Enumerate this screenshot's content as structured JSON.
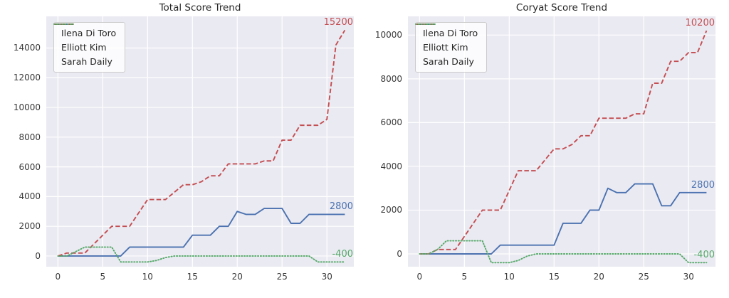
{
  "colors": {
    "figure_bg": "#ffffff",
    "axes_bg": "#eaeaf2",
    "grid": "#ffffff",
    "text": "#262626",
    "tick_text": "#3a3a3a",
    "ilena": "#4c72b0",
    "elliott": "#c44e52",
    "sarah": "#55a868",
    "legend_border": "#cccccc"
  },
  "chart_data": [
    {
      "type": "line",
      "title": "Total Score Trend",
      "grid": true,
      "legend_position": "upper left",
      "x_ticks": [
        0,
        5,
        10,
        15,
        20,
        25,
        30
      ],
      "y_ticks": [
        0,
        2000,
        4000,
        6000,
        8000,
        10000,
        12000,
        14000
      ],
      "xlim": [
        -1.3,
        33.0
      ],
      "ylim": [
        -720,
        16130
      ],
      "x": [
        0,
        1,
        2,
        3,
        4,
        5,
        6,
        7,
        8,
        9,
        10,
        11,
        12,
        13,
        14,
        15,
        16,
        17,
        18,
        19,
        20,
        21,
        22,
        23,
        24,
        25,
        26,
        27,
        28,
        29,
        30,
        31,
        32
      ],
      "series": [
        {
          "name": "Ilena Di Toro",
          "color_key": "ilena",
          "dash": "solid",
          "end_label": "2800",
          "values": [
            0,
            0,
            0,
            0,
            0,
            0,
            0,
            0,
            600,
            600,
            600,
            600,
            600,
            600,
            600,
            1400,
            1400,
            1400,
            2000,
            2000,
            3000,
            2800,
            2800,
            3200,
            3200,
            3200,
            2200,
            2200,
            2800,
            2800,
            2800,
            2800,
            2800
          ]
        },
        {
          "name": "Elliott Kim",
          "color_key": "elliott",
          "dash": "dashed",
          "end_label": "15200",
          "values": [
            0,
            200,
            200,
            200,
            800,
            1400,
            2000,
            2000,
            2000,
            2900,
            3800,
            3800,
            3800,
            4300,
            4800,
            4800,
            5000,
            5400,
            5400,
            6200,
            6200,
            6200,
            6200,
            6400,
            6400,
            7800,
            7800,
            8800,
            8800,
            8800,
            9200,
            14200,
            15200
          ]
        },
        {
          "name": "Sarah Daily",
          "color_key": "sarah",
          "dash": "dotted",
          "end_label": "-400",
          "values": [
            0,
            0,
            300,
            600,
            600,
            600,
            600,
            -400,
            -400,
            -400,
            -400,
            -300,
            -100,
            0,
            0,
            0,
            0,
            0,
            0,
            0,
            0,
            0,
            0,
            0,
            0,
            0,
            0,
            0,
            0,
            -400,
            -400,
            -400,
            -400
          ]
        }
      ]
    },
    {
      "type": "line",
      "title": "Coryat Score Trend",
      "grid": true,
      "legend_position": "upper left",
      "x_ticks": [
        0,
        5,
        10,
        15,
        20,
        25,
        30
      ],
      "y_ticks": [
        0,
        2000,
        4000,
        6000,
        8000,
        10000
      ],
      "xlim": [
        -1.3,
        33.0
      ],
      "ylim": [
        -585,
        10855
      ],
      "x": [
        0,
        1,
        2,
        3,
        4,
        5,
        6,
        7,
        8,
        9,
        10,
        11,
        12,
        13,
        14,
        15,
        16,
        17,
        18,
        19,
        20,
        21,
        22,
        23,
        24,
        25,
        26,
        27,
        28,
        29,
        30,
        31,
        32
      ],
      "series": [
        {
          "name": "Ilena Di Toro",
          "color_key": "ilena",
          "dash": "solid",
          "end_label": "2800",
          "values": [
            0,
            0,
            0,
            0,
            0,
            0,
            0,
            0,
            0,
            400,
            400,
            400,
            400,
            400,
            400,
            400,
            1400,
            1400,
            1400,
            2000,
            2000,
            3000,
            2800,
            2800,
            3200,
            3200,
            3200,
            2200,
            2200,
            2800,
            2800,
            2800,
            2800
          ]
        },
        {
          "name": "Elliott Kim",
          "color_key": "elliott",
          "dash": "dashed",
          "end_label": "10200",
          "values": [
            0,
            0,
            200,
            200,
            200,
            800,
            1400,
            2000,
            2000,
            2000,
            2900,
            3800,
            3800,
            3800,
            4300,
            4800,
            4800,
            5000,
            5400,
            5400,
            6200,
            6200,
            6200,
            6200,
            6400,
            6400,
            7800,
            7800,
            8800,
            8800,
            9200,
            9200,
            10200
          ]
        },
        {
          "name": "Sarah Daily",
          "color_key": "sarah",
          "dash": "dotted",
          "end_label": "-400",
          "values": [
            0,
            0,
            200,
            600,
            600,
            600,
            600,
            600,
            -400,
            -400,
            -400,
            -300,
            -100,
            0,
            0,
            0,
            0,
            0,
            0,
            0,
            0,
            0,
            0,
            0,
            0,
            0,
            0,
            0,
            0,
            0,
            -400,
            -400,
            -400
          ]
        }
      ]
    }
  ]
}
